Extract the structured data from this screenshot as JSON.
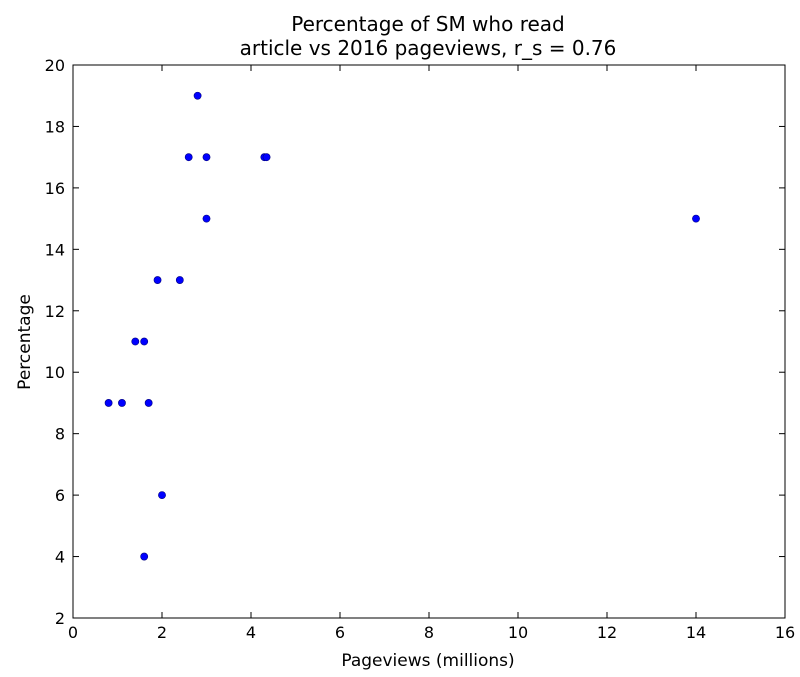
{
  "chart_data": {
    "type": "scatter",
    "title_lines": [
      "Percentage of SM who read",
      "article vs 2016 pageviews, r_s = 0.76"
    ],
    "xlabel": "Pageviews (millions)",
    "ylabel": "Percentage",
    "xlim": [
      0,
      16
    ],
    "ylim": [
      2,
      20
    ],
    "xticks": [
      0,
      2,
      4,
      6,
      8,
      10,
      12,
      14,
      16
    ],
    "yticks": [
      2,
      4,
      6,
      8,
      10,
      12,
      14,
      16,
      18,
      20
    ],
    "grid": false,
    "marker_color": "#0000ff",
    "points": [
      {
        "x": 0.8,
        "y": 9
      },
      {
        "x": 1.1,
        "y": 9
      },
      {
        "x": 1.4,
        "y": 11
      },
      {
        "x": 1.6,
        "y": 11
      },
      {
        "x": 1.7,
        "y": 9
      },
      {
        "x": 1.6,
        "y": 4
      },
      {
        "x": 1.9,
        "y": 13
      },
      {
        "x": 2.0,
        "y": 6
      },
      {
        "x": 2.4,
        "y": 13
      },
      {
        "x": 2.6,
        "y": 17
      },
      {
        "x": 2.8,
        "y": 19
      },
      {
        "x": 3.0,
        "y": 17
      },
      {
        "x": 3.0,
        "y": 15
      },
      {
        "x": 4.3,
        "y": 17
      },
      {
        "x": 4.35,
        "y": 17
      },
      {
        "x": 14.0,
        "y": 15
      }
    ]
  }
}
